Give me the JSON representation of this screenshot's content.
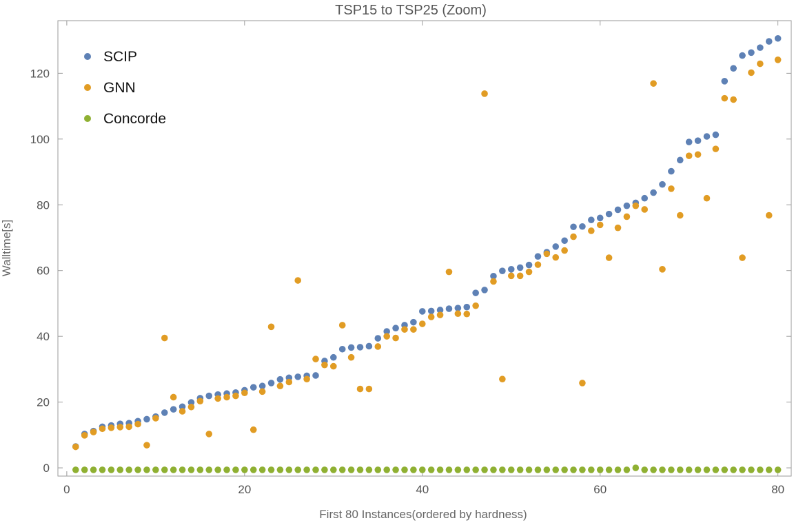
{
  "chart_data": {
    "type": "scatter",
    "title": "TSP15 to TSP25 (Zoom)",
    "xlabel": "First 80 Instances(ordered by hardness)",
    "ylabel": "Walltime[s]",
    "xlim": [
      -1,
      81.5
    ],
    "ylim": [
      -2.5,
      136
    ],
    "xticks": [
      0,
      20,
      40,
      60,
      80
    ],
    "yticks": [
      0,
      20,
      40,
      60,
      80,
      100,
      120
    ],
    "grid": false,
    "legend_position": "top-left",
    "series": [
      {
        "name": "SCIP",
        "color": "#5e81b5",
        "x": [
          1,
          2,
          3,
          4,
          5,
          6,
          7,
          8,
          9,
          10,
          11,
          12,
          13,
          14,
          15,
          16,
          17,
          18,
          19,
          20,
          21,
          22,
          23,
          24,
          25,
          26,
          27,
          28,
          29,
          30,
          31,
          32,
          33,
          34,
          35,
          36,
          37,
          38,
          39,
          40,
          41,
          42,
          43,
          44,
          45,
          46,
          47,
          48,
          49,
          50,
          51,
          52,
          53,
          54,
          55,
          56,
          57,
          58,
          59,
          60,
          61,
          62,
          63,
          64,
          65,
          66,
          67,
          68,
          69,
          70,
          71,
          72,
          73,
          74,
          75,
          76,
          77,
          78,
          79,
          80
        ],
        "y": [
          6.5,
          10.3,
          11.2,
          12.5,
          12.9,
          13.4,
          13.6,
          14.2,
          14.8,
          15.6,
          16.8,
          17.8,
          18.6,
          19.9,
          21.2,
          21.9,
          22.3,
          22.6,
          22.9,
          23.6,
          24.5,
          24.9,
          25.8,
          26.9,
          27.4,
          27.7,
          28.0,
          28.1,
          32.5,
          33.6,
          36.1,
          36.6,
          36.7,
          37.0,
          39.4,
          41.5,
          42.5,
          43.4,
          44.3,
          47.6,
          47.7,
          48.0,
          48.4,
          48.6,
          48.9,
          53.2,
          54.1,
          58.3,
          59.9,
          60.4,
          60.9,
          61.7,
          64.3,
          65.6,
          67.3,
          69.1,
          73.3,
          73.4,
          75.4,
          76.0,
          77.2,
          78.5,
          79.7,
          80.6,
          82.0,
          83.7,
          86.2,
          90.2,
          93.6,
          99.1,
          99.5,
          100.8,
          101.3,
          117.6,
          121.5,
          125.4,
          126.3,
          127.8,
          129.7,
          130.6
        ]
      },
      {
        "name": "GNN",
        "color": "#e19c24",
        "x": [
          1,
          2,
          3,
          4,
          5,
          6,
          7,
          8,
          9,
          10,
          11,
          12,
          13,
          14,
          15,
          16,
          17,
          18,
          19,
          20,
          21,
          22,
          23,
          24,
          25,
          26,
          27,
          28,
          29,
          30,
          31,
          32,
          33,
          34,
          35,
          36,
          37,
          38,
          39,
          40,
          41,
          42,
          43,
          44,
          45,
          46,
          47,
          48,
          49,
          50,
          51,
          52,
          53,
          54,
          55,
          56,
          57,
          58,
          59,
          60,
          61,
          62,
          63,
          64,
          65,
          66,
          67,
          68,
          69,
          70,
          71,
          72,
          73,
          74,
          75,
          76,
          77,
          78,
          79,
          80
        ],
        "y": [
          6.4,
          9.9,
          10.9,
          11.9,
          12.2,
          12.4,
          12.5,
          13.3,
          6.9,
          15.1,
          39.5,
          21.5,
          17.2,
          18.5,
          20.3,
          10.3,
          21.1,
          21.5,
          21.9,
          22.8,
          11.6,
          23.2,
          42.9,
          24.9,
          26.1,
          57.0,
          27.0,
          33.1,
          31.3,
          30.9,
          43.4,
          33.6,
          24.0,
          24.0,
          36.9,
          40.0,
          39.5,
          42.1,
          42.1,
          43.8,
          45.9,
          46.5,
          59.6,
          46.9,
          46.8,
          49.3,
          113.8,
          56.7,
          27.0,
          58.4,
          58.4,
          59.6,
          61.8,
          65.1,
          64.0,
          66.1,
          70.3,
          25.8,
          72.1,
          73.9,
          63.9,
          73.0,
          76.4,
          79.7,
          78.6,
          116.9,
          60.4,
          84.9,
          76.8,
          94.9,
          95.3,
          82.0,
          97.0,
          112.4,
          112.0,
          63.9,
          120.2,
          122.9,
          76.8,
          124.1
        ]
      },
      {
        "name": "Concorde",
        "color": "#8fb032",
        "x": [
          1,
          2,
          3,
          4,
          5,
          6,
          7,
          8,
          9,
          10,
          11,
          12,
          13,
          14,
          15,
          16,
          17,
          18,
          19,
          20,
          21,
          22,
          23,
          24,
          25,
          26,
          27,
          28,
          29,
          30,
          31,
          32,
          33,
          34,
          35,
          36,
          37,
          38,
          39,
          40,
          41,
          42,
          43,
          44,
          45,
          46,
          47,
          48,
          49,
          50,
          51,
          52,
          53,
          54,
          55,
          56,
          57,
          58,
          59,
          60,
          61,
          62,
          63,
          64,
          65,
          66,
          67,
          68,
          69,
          70,
          71,
          72,
          73,
          74,
          75,
          76,
          77,
          78,
          79,
          80
        ],
        "y": [
          -0.6,
          -0.6,
          -0.6,
          -0.6,
          -0.6,
          -0.6,
          -0.6,
          -0.6,
          -0.6,
          -0.6,
          -0.6,
          -0.6,
          -0.6,
          -0.6,
          -0.6,
          -0.6,
          -0.6,
          -0.6,
          -0.6,
          -0.6,
          -0.6,
          -0.6,
          -0.6,
          -0.6,
          -0.6,
          -0.6,
          -0.6,
          -0.6,
          -0.6,
          -0.6,
          -0.6,
          -0.6,
          -0.6,
          -0.6,
          -0.6,
          -0.6,
          -0.6,
          -0.6,
          -0.6,
          -0.6,
          -0.6,
          -0.6,
          -0.6,
          -0.6,
          -0.6,
          -0.6,
          -0.6,
          -0.6,
          -0.6,
          -0.6,
          -0.6,
          -0.6,
          -0.6,
          -0.6,
          -0.6,
          -0.6,
          -0.6,
          -0.6,
          -0.6,
          -0.6,
          -0.6,
          -0.6,
          -0.6,
          0.0,
          -0.6,
          -0.6,
          -0.6,
          -0.6,
          -0.6,
          -0.6,
          -0.6,
          -0.6,
          -0.6,
          -0.6,
          -0.6,
          -0.6,
          -0.6,
          -0.6,
          -0.6,
          -0.6
        ]
      }
    ]
  }
}
